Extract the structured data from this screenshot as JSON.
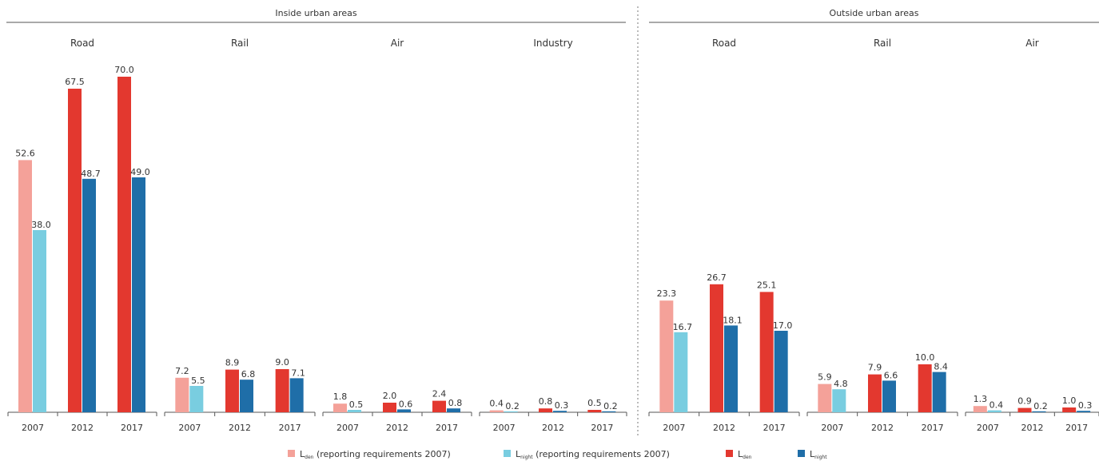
{
  "chart_data": {
    "type": "bar",
    "groups": [
      {
        "title": "Inside urban areas",
        "categories": [
          "Road",
          "Rail",
          "Air",
          "Industry"
        ]
      },
      {
        "title": "Outside urban areas",
        "categories": [
          "Road",
          "Rail",
          "Air"
        ]
      }
    ],
    "years": [
      "2007",
      "2012",
      "2017"
    ],
    "legend": [
      {
        "key": "lden2007",
        "main": "L",
        "sub": "den",
        "suffix": " (reporting requirements 2007)",
        "color": "#f4a199"
      },
      {
        "key": "lnight2007",
        "main": "L",
        "sub": "night",
        "suffix": " (reporting requirements 2007)",
        "color": "#79cde0"
      },
      {
        "key": "lden",
        "main": "L",
        "sub": "den",
        "suffix": "",
        "color": "#e3382f"
      },
      {
        "key": "lnight",
        "main": "L",
        "sub": "night",
        "suffix": "",
        "color": "#1f6ea8"
      }
    ],
    "panels": [
      {
        "group": 0,
        "category": "Road",
        "bars": [
          {
            "year": "2007",
            "den": 52.6,
            "night": 38.0,
            "den_label": "52.6",
            "night_label": "38.0"
          },
          {
            "year": "2012",
            "den": 67.5,
            "night": 48.7,
            "den_label": "67.5",
            "night_label": "48.7"
          },
          {
            "year": "2017",
            "den": 70.0,
            "night": 49.0,
            "den_label": "70.0",
            "night_label": "49.0"
          }
        ]
      },
      {
        "group": 0,
        "category": "Rail",
        "bars": [
          {
            "year": "2007",
            "den": 7.2,
            "night": 5.5,
            "den_label": "7.2",
            "night_label": "5.5"
          },
          {
            "year": "2012",
            "den": 8.9,
            "night": 6.8,
            "den_label": "8.9",
            "night_label": "6.8"
          },
          {
            "year": "2017",
            "den": 9.0,
            "night": 7.1,
            "den_label": "9.0",
            "night_label": "7.1"
          }
        ]
      },
      {
        "group": 0,
        "category": "Air",
        "bars": [
          {
            "year": "2007",
            "den": 1.8,
            "night": 0.5,
            "den_label": "1.8",
            "night_label": "0.5"
          },
          {
            "year": "2012",
            "den": 2.0,
            "night": 0.6,
            "den_label": "2.0",
            "night_label": "0.6"
          },
          {
            "year": "2017",
            "den": 2.4,
            "night": 0.8,
            "den_label": "2.4",
            "night_label": "0.8"
          }
        ]
      },
      {
        "group": 0,
        "category": "Industry",
        "bars": [
          {
            "year": "2007",
            "den": 0.4,
            "night": 0.2,
            "den_label": "0.4",
            "night_label": "0.2"
          },
          {
            "year": "2012",
            "den": 0.8,
            "night": 0.3,
            "den_label": "0.8",
            "night_label": "0.3"
          },
          {
            "year": "2017",
            "den": 0.5,
            "night": 0.2,
            "den_label": "0.5",
            "night_label": "0.2"
          }
        ]
      },
      {
        "group": 1,
        "category": "Road",
        "bars": [
          {
            "year": "2007",
            "den": 23.3,
            "night": 16.7,
            "den_label": "23.3",
            "night_label": "16.7"
          },
          {
            "year": "2012",
            "den": 26.7,
            "night": 18.1,
            "den_label": "26.7",
            "night_label": "18.1"
          },
          {
            "year": "2017",
            "den": 25.1,
            "night": 17.0,
            "den_label": "25.1",
            "night_label": "17.0"
          }
        ]
      },
      {
        "group": 1,
        "category": "Rail",
        "bars": [
          {
            "year": "2007",
            "den": 5.9,
            "night": 4.8,
            "den_label": "5.9",
            "night_label": "4.8"
          },
          {
            "year": "2012",
            "den": 7.9,
            "night": 6.6,
            "den_label": "7.9",
            "night_label": "6.6"
          },
          {
            "year": "2017",
            "den": 10.0,
            "night": 8.4,
            "den_label": "10.0",
            "night_label": "8.4"
          }
        ]
      },
      {
        "group": 1,
        "category": "Air",
        "bars": [
          {
            "year": "2007",
            "den": 1.3,
            "night": 0.4,
            "den_label": "1.3",
            "night_label": "0.4"
          },
          {
            "year": "2012",
            "den": 0.9,
            "night": 0.2,
            "den_label": "0.9",
            "night_label": "0.2"
          },
          {
            "year": "2017",
            "den": 1.0,
            "night": 0.3,
            "den_label": "1.0",
            "night_label": "0.3"
          }
        ]
      }
    ],
    "colors": {
      "den2007": "#f4a199",
      "night2007": "#79cde0",
      "den": "#e3382f",
      "night": "#1f6ea8",
      "axis": "#555555",
      "divider": "#777777"
    },
    "ylim": [
      0,
      70
    ],
    "grid": false,
    "legend_position": "bottom"
  }
}
